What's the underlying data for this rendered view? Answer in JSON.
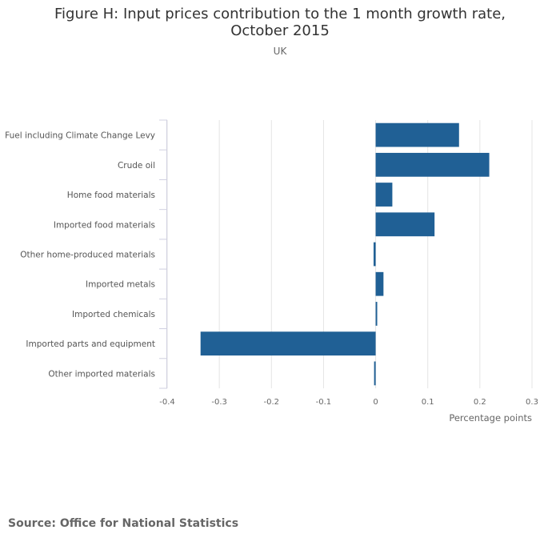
{
  "chart_data": {
    "type": "bar",
    "orientation": "horizontal",
    "title": "Figure H: Input prices contribution to the 1 month growth rate, October 2015",
    "subtitle": "UK",
    "categories": [
      "Fuel including Climate Change Levy",
      "Crude oil",
      "Home food materials",
      "Imported food materials",
      "Other home-produced materials",
      "Imported metals",
      "Imported chemicals",
      "Imported parts and equipment",
      "Other imported materials"
    ],
    "values": [
      0.16,
      0.218,
      0.032,
      0.113,
      -0.004,
      0.015,
      0.003,
      -0.336,
      -0.003
    ],
    "xlabel": "Percentage points",
    "ylabel": "",
    "xlim": [
      -0.4,
      0.3
    ],
    "xticks": [
      "-0.4",
      "-0.3",
      "-0.2",
      "-0.1",
      "0",
      "0.1",
      "0.2",
      "0.3"
    ],
    "xtick_values": [
      -0.4,
      -0.3,
      -0.2,
      -0.1,
      0,
      0.1,
      0.2,
      0.3
    ],
    "grid": true,
    "bar_color": "#206095"
  },
  "source": "Source: Office for National Statistics"
}
